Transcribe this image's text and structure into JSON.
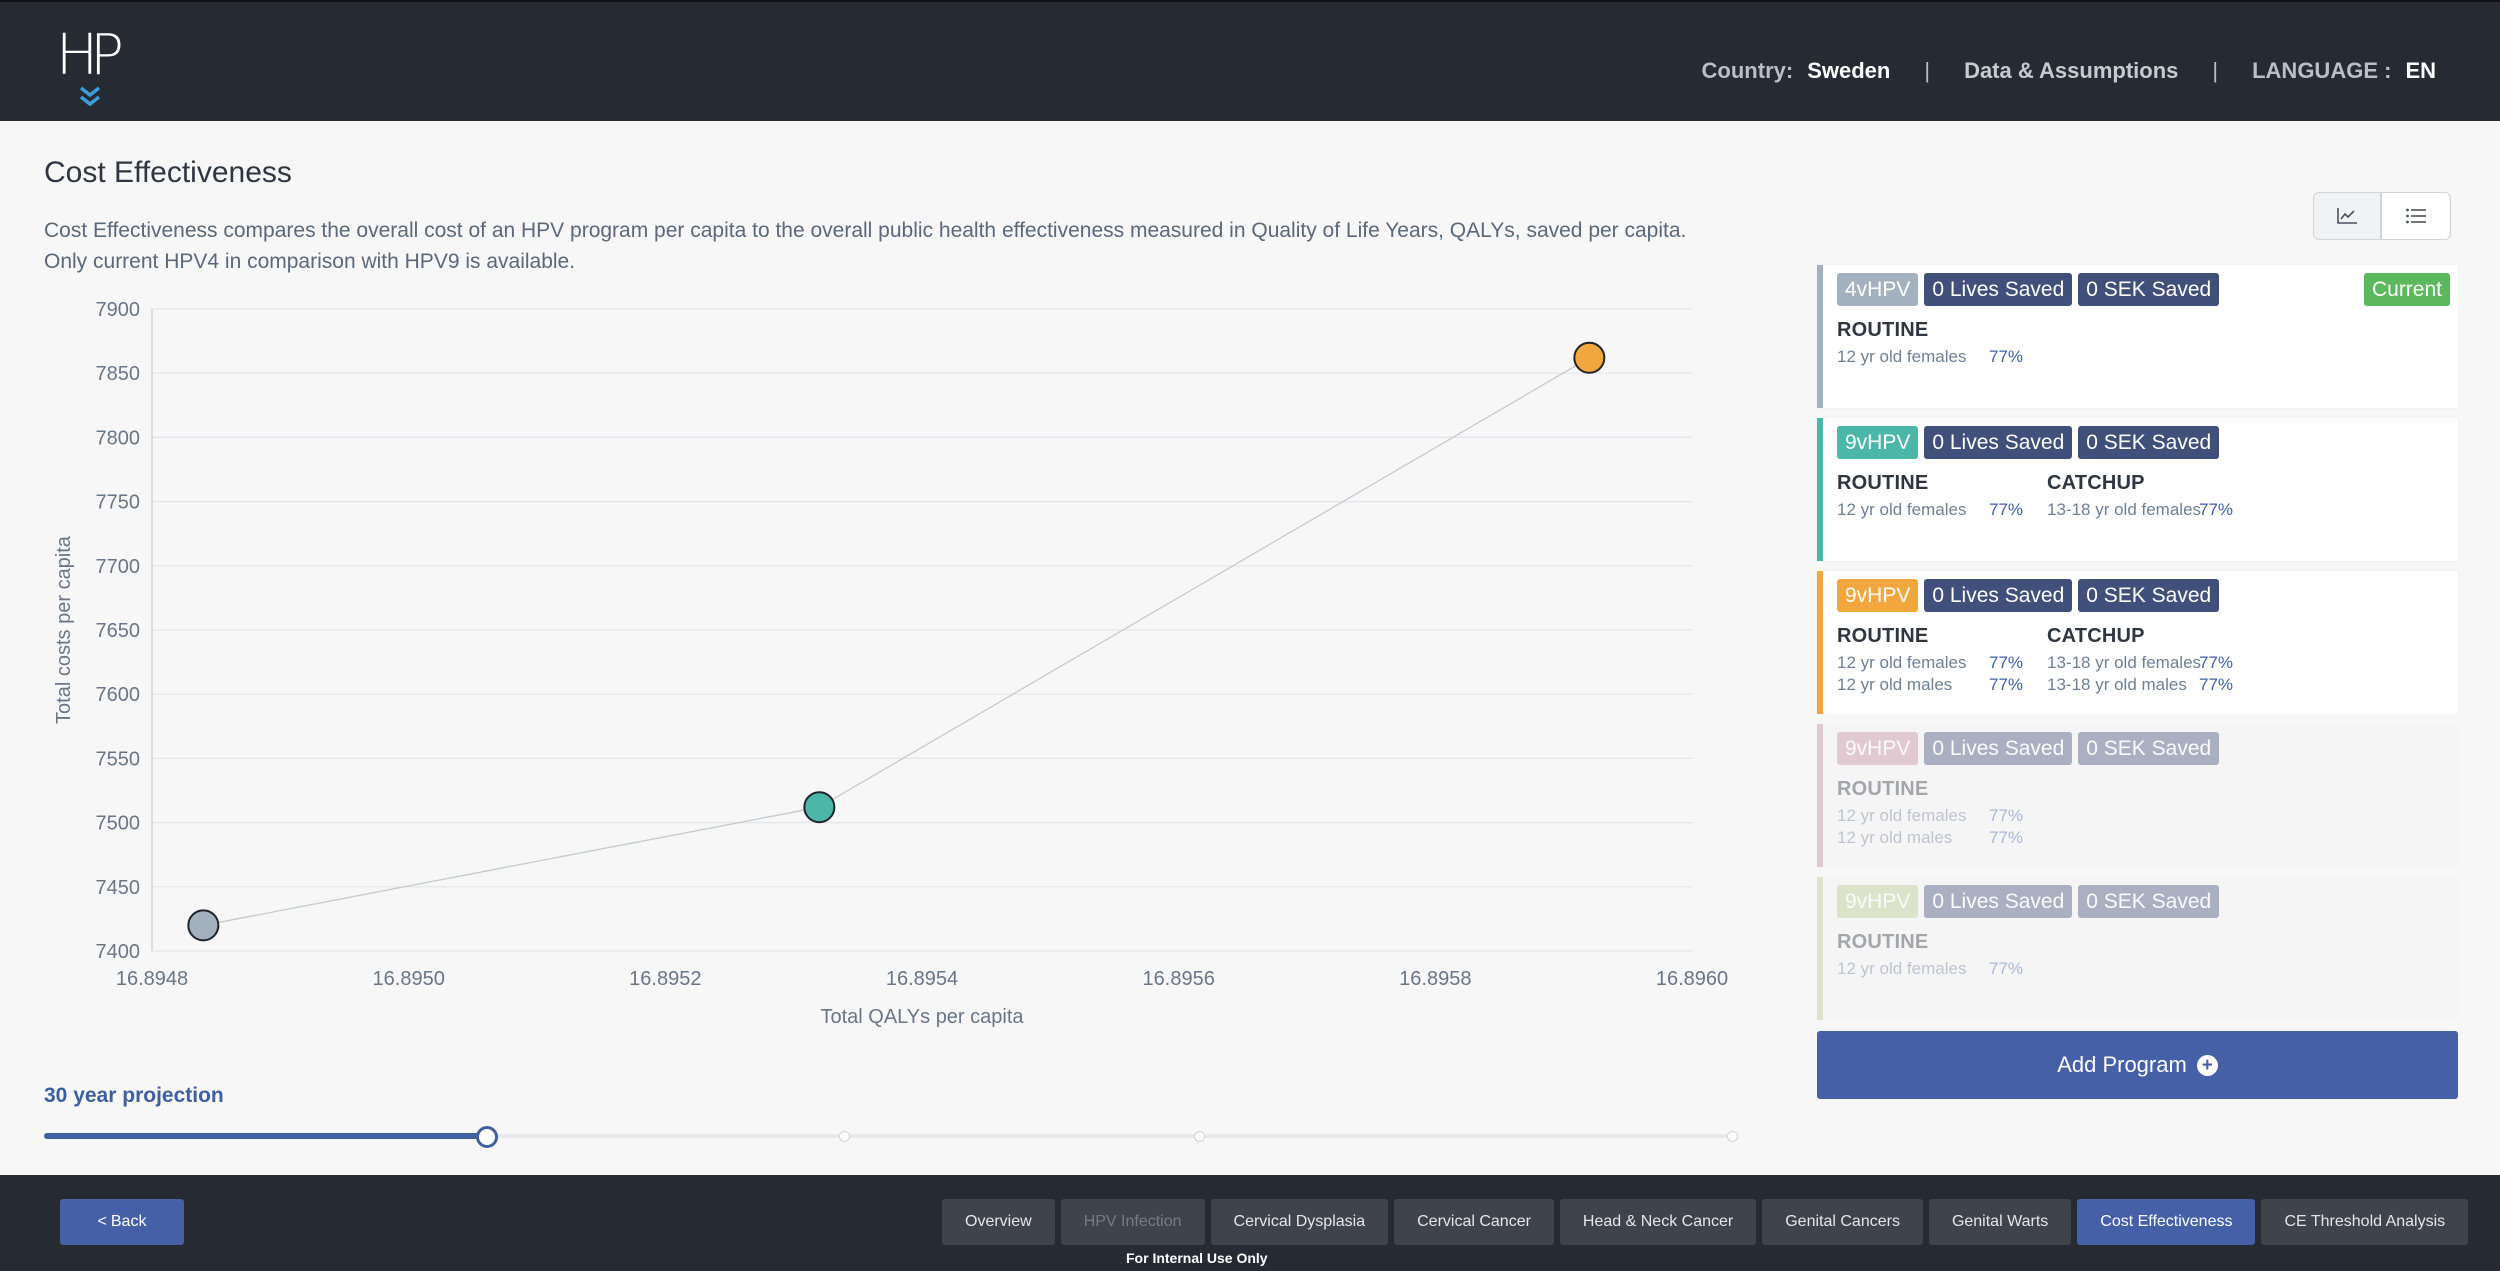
{
  "header": {
    "logo_text": "HP",
    "country_label": "Country:",
    "country_value": "Sweden",
    "data_link": "Data & Assumptions",
    "language_label": "LANGUAGE :",
    "language_value": "EN"
  },
  "page": {
    "title": "Cost Effectiveness",
    "description_line1": "Cost Effectiveness compares the overall cost of an HPV program per capita to the overall public health effectiveness measured in Quality of Life Years, QALYs, saved per capita.",
    "description_line2": "Only current HPV4 in comparison with HPV9 is available."
  },
  "chart_data": {
    "type": "scatter",
    "xlabel": "Total QALYs per capita",
    "ylabel": "Total costs per capita",
    "xlim": [
      16.8948,
      16.896
    ],
    "ylim": [
      7400,
      7900
    ],
    "x_ticks": [
      "16.8948",
      "16.8950",
      "16.8952",
      "16.8954",
      "16.8956",
      "16.8958",
      "16.8960"
    ],
    "y_ticks": [
      "7900",
      "7850",
      "7800",
      "7750",
      "7700",
      "7650",
      "7600",
      "7550",
      "7500",
      "7450",
      "7400"
    ],
    "grid": true,
    "connected": true,
    "points": [
      {
        "x": 16.89484,
        "y": 7420,
        "color": "#a3b1be"
      },
      {
        "x": 16.89532,
        "y": 7512,
        "color": "#4bb7a8"
      },
      {
        "x": 16.89592,
        "y": 7862,
        "color": "#f2a73e"
      }
    ]
  },
  "projection": {
    "label": "30 year projection",
    "value_fraction": 0.262
  },
  "view_toggle": {
    "chart_icon": "line-chart-icon",
    "list_icon": "list-icon"
  },
  "programs": [
    {
      "vaccine": "4vHPV",
      "color": "#a3b1be",
      "lives": "0 Lives Saved",
      "saved": "0 SEK Saved",
      "current": "Current",
      "faded": false,
      "groups": [
        {
          "title": "ROUTINE",
          "rows": [
            {
              "who": "12 yr old females",
              "pct": "77%"
            }
          ]
        }
      ]
    },
    {
      "vaccine": "9vHPV",
      "color": "#4bb7a8",
      "lives": "0 Lives Saved",
      "saved": "0 SEK Saved",
      "faded": false,
      "groups": [
        {
          "title": "ROUTINE",
          "rows": [
            {
              "who": "12 yr old females",
              "pct": "77%"
            }
          ]
        },
        {
          "title": "CATCHUP",
          "rows": [
            {
              "who": "13-18 yr old females",
              "pct": "77%"
            }
          ]
        }
      ]
    },
    {
      "vaccine": "9vHPV",
      "color": "#f2a73e",
      "lives": "0 Lives Saved",
      "saved": "0 SEK Saved",
      "faded": false,
      "groups": [
        {
          "title": "ROUTINE",
          "rows": [
            {
              "who": "12 yr old females",
              "pct": "77%"
            },
            {
              "who": "12 yr old males",
              "pct": "77%"
            }
          ]
        },
        {
          "title": "CATCHUP",
          "rows": [
            {
              "who": "13-18 yr old females",
              "pct": "77%"
            },
            {
              "who": "13-18 yr old males",
              "pct": "77%"
            }
          ]
        }
      ]
    },
    {
      "vaccine": "9vHPV",
      "color": "#c48a9f",
      "lives": "0 Lives Saved",
      "saved": "0 SEK Saved",
      "faded": true,
      "groups": [
        {
          "title": "ROUTINE",
          "rows": [
            {
              "who": "12 yr old females",
              "pct": "77%"
            },
            {
              "who": "12 yr old males",
              "pct": "77%"
            }
          ]
        }
      ]
    },
    {
      "vaccine": "9vHPV",
      "color": "#b5c98d",
      "lives": "0 Lives Saved",
      "saved": "0 SEK Saved",
      "faded": true,
      "groups": [
        {
          "title": "ROUTINE",
          "rows": [
            {
              "who": "12 yr old females",
              "pct": "77%"
            }
          ]
        }
      ]
    }
  ],
  "add_program": "Add Program",
  "footer": {
    "back": "Back",
    "internal": "For Internal Use Only",
    "tabs": [
      {
        "label": "Overview",
        "state": "normal"
      },
      {
        "label": "HPV Infection",
        "state": "disabled"
      },
      {
        "label": "Cervical Dysplasia",
        "state": "normal"
      },
      {
        "label": "Cervical Cancer",
        "state": "normal"
      },
      {
        "label": "Head & Neck Cancer",
        "state": "normal"
      },
      {
        "label": "Genital Cancers",
        "state": "normal"
      },
      {
        "label": "Genital Warts",
        "state": "normal"
      },
      {
        "label": "Cost Effectiveness",
        "state": "active"
      },
      {
        "label": "CE Threshold Analysis",
        "state": "normal"
      }
    ]
  }
}
